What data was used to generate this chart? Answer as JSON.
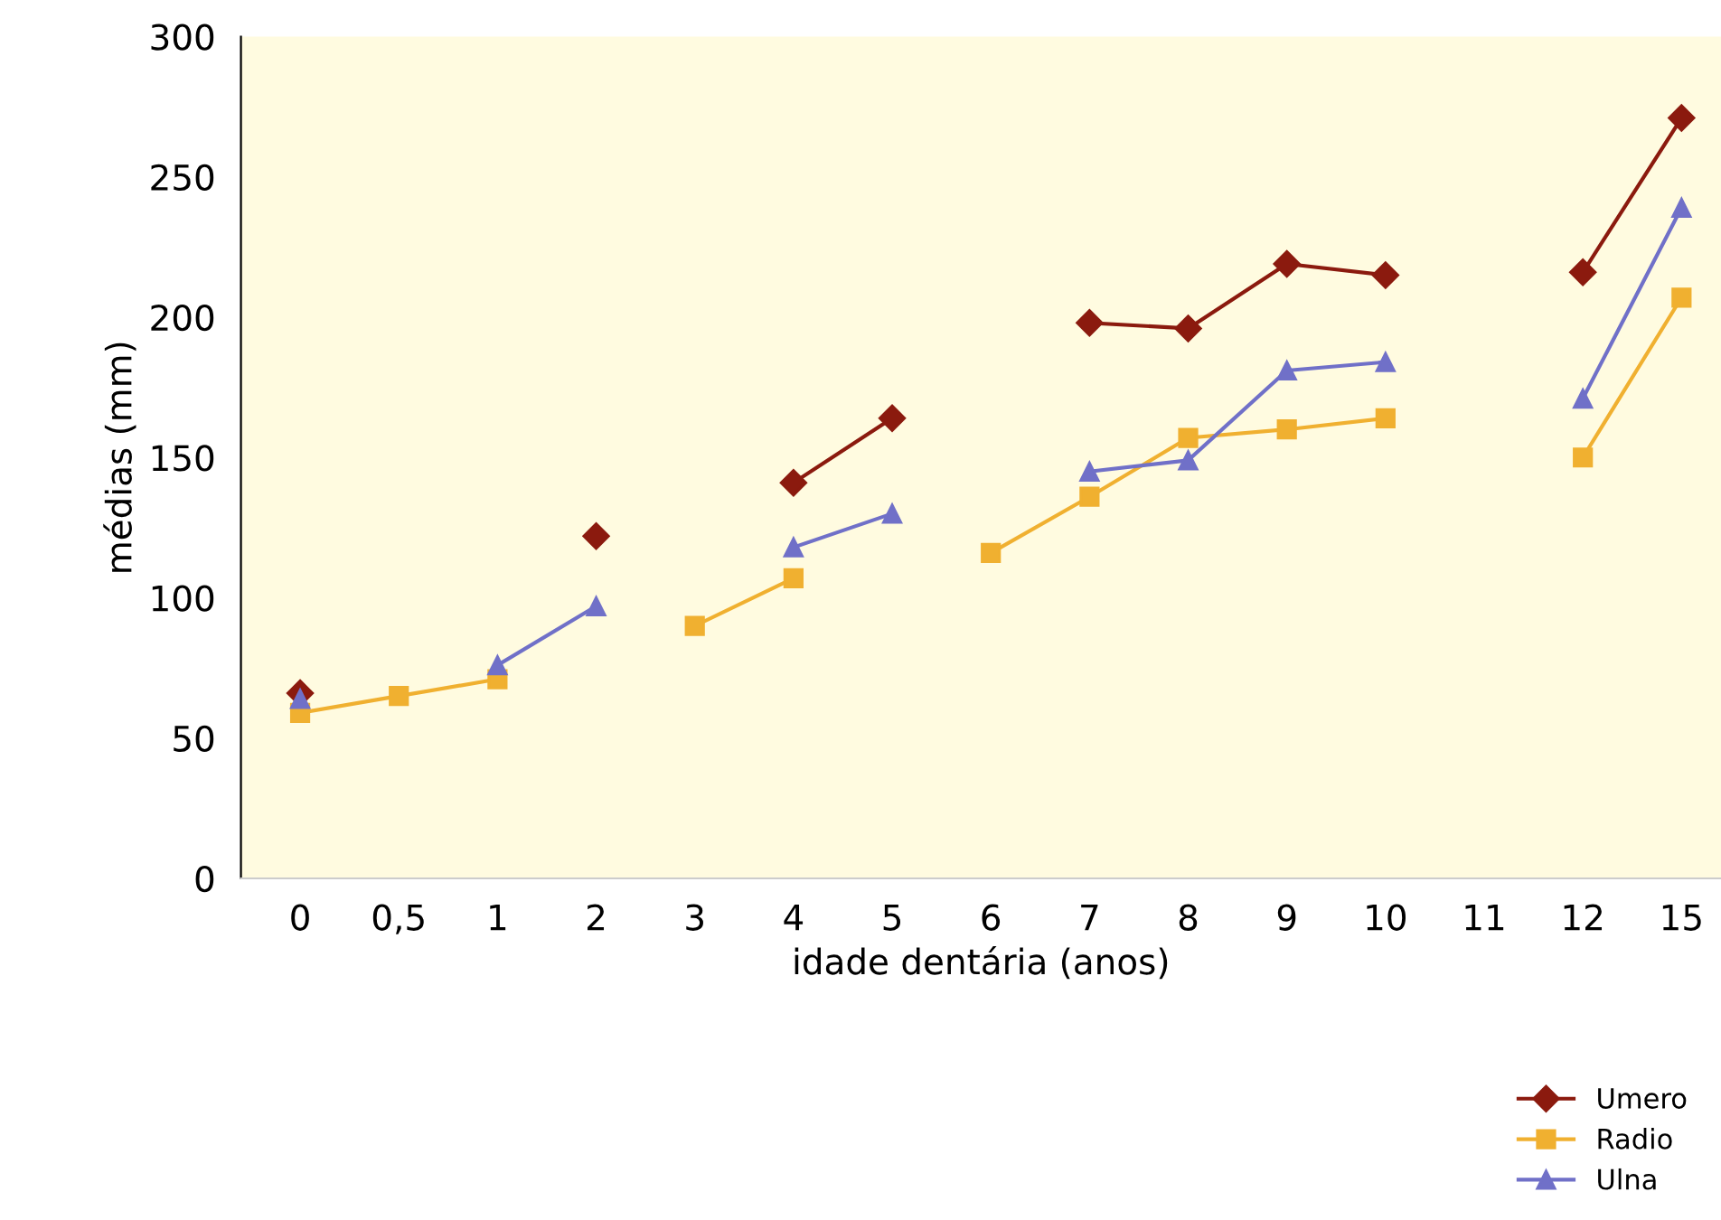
{
  "chart_data": {
    "type": "line",
    "xlabel": "idade dentária (anos)",
    "ylabel": "médias (mm)",
    "categories": [
      "0",
      "0,5",
      "1",
      "2",
      "3",
      "4",
      "5",
      "6",
      "7",
      "8",
      "9",
      "10",
      "11",
      "12",
      "15"
    ],
    "ylim": [
      0,
      300
    ],
    "yticks": [
      0,
      50,
      100,
      150,
      200,
      250,
      300
    ],
    "grid": false,
    "legend": "bottom right",
    "line_style": "solid",
    "series": [
      {
        "name": "Umero",
        "color": "#8b1a0e",
        "marker": "diamond",
        "values": [
          66,
          null,
          null,
          122,
          null,
          141,
          164,
          null,
          198,
          196,
          219,
          215,
          null,
          216,
          271
        ]
      },
      {
        "name": "Radio",
        "color": "#f0b030",
        "marker": "square",
        "values": [
          59,
          65,
          71,
          null,
          90,
          107,
          null,
          116,
          136,
          157,
          160,
          164,
          null,
          150,
          207
        ]
      },
      {
        "name": "Ulna",
        "color": "#7070c8",
        "marker": "triangle",
        "values": [
          64,
          null,
          76,
          97,
          null,
          118,
          130,
          null,
          145,
          149,
          181,
          184,
          null,
          171,
          239
        ]
      }
    ]
  }
}
